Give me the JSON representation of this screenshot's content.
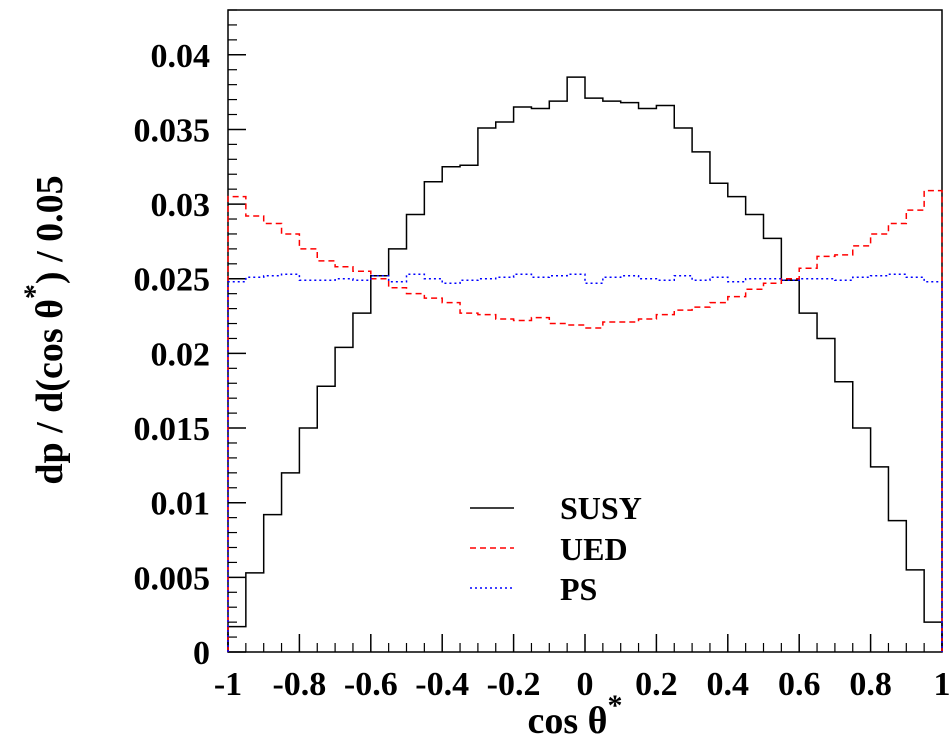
{
  "chart_data": {
    "type": "line",
    "xlabel": "cos θ",
    "xlabel_sup": "*",
    "ylabel": "dp / d(cos θ",
    "ylabel_sup": "*",
    "ylabel_tail": ") / 0.05",
    "xlim": [
      -1,
      1
    ],
    "ylim": [
      0,
      0.043
    ],
    "x_ticks": [
      -1,
      -0.8,
      -0.6,
      -0.4,
      -0.2,
      0,
      0.2,
      0.4,
      0.6,
      0.8,
      1
    ],
    "x_tick_labels": [
      "-1",
      "-0.8",
      "-0.6",
      "-0.4",
      "-0.2",
      "0",
      "0.2",
      "0.4",
      "0.6",
      "0.8",
      "1"
    ],
    "y_ticks": [
      0,
      0.005,
      0.01,
      0.015,
      0.02,
      0.025,
      0.03,
      0.035,
      0.04
    ],
    "y_tick_labels": [
      "0",
      "0.005",
      "0.01",
      "0.015",
      "0.02",
      "0.025",
      "0.03",
      "0.035",
      "0.04"
    ],
    "bin_edges_start": -1,
    "bin_width": 0.05,
    "grid": false,
    "legend_position": "bottom-center",
    "series": [
      {
        "name": "SUSY",
        "style": "solid",
        "color": "#000000",
        "values": [
          0.0017,
          0.0053,
          0.0092,
          0.012,
          0.015,
          0.0178,
          0.0204,
          0.0227,
          0.0252,
          0.027,
          0.0293,
          0.0315,
          0.0325,
          0.0326,
          0.0351,
          0.0355,
          0.0365,
          0.0364,
          0.0369,
          0.0385,
          0.0371,
          0.0369,
          0.0368,
          0.0364,
          0.0366,
          0.0351,
          0.0335,
          0.0314,
          0.0305,
          0.0293,
          0.0277,
          0.0249,
          0.0227,
          0.021,
          0.0181,
          0.015,
          0.0124,
          0.0088,
          0.0055,
          0.002
        ]
      },
      {
        "name": "UED",
        "style": "dashed",
        "color": "#ff0000",
        "values": [
          0.0305,
          0.0292,
          0.0287,
          0.028,
          0.027,
          0.0262,
          0.0258,
          0.0255,
          0.025,
          0.0244,
          0.024,
          0.0237,
          0.0234,
          0.0227,
          0.0226,
          0.0223,
          0.0222,
          0.0224,
          0.022,
          0.0219,
          0.0217,
          0.0221,
          0.0221,
          0.0223,
          0.0226,
          0.0229,
          0.0231,
          0.0234,
          0.0238,
          0.0243,
          0.0247,
          0.025,
          0.0257,
          0.0265,
          0.0266,
          0.0272,
          0.028,
          0.0287,
          0.0296,
          0.0309
        ]
      },
      {
        "name": "PS",
        "style": "dotted",
        "color": "#0000ff",
        "values": [
          0.0248,
          0.0251,
          0.0252,
          0.0253,
          0.0249,
          0.0249,
          0.025,
          0.0249,
          0.0252,
          0.0248,
          0.0253,
          0.025,
          0.0247,
          0.0249,
          0.025,
          0.0251,
          0.0253,
          0.0251,
          0.0252,
          0.0253,
          0.0247,
          0.0251,
          0.0252,
          0.025,
          0.0249,
          0.0252,
          0.0249,
          0.0251,
          0.0248,
          0.025,
          0.025,
          0.0249,
          0.025,
          0.025,
          0.0249,
          0.0251,
          0.0252,
          0.0253,
          0.0251,
          0.0248
        ]
      }
    ]
  }
}
